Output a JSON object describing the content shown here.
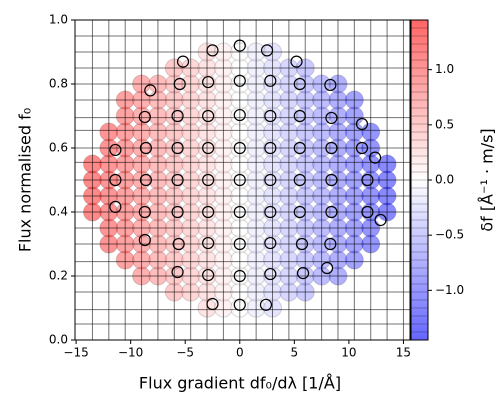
{
  "chart_data": {
    "type": "scatter",
    "xlabel": "Flux gradient df₀/dλ [1/Å]",
    "ylabel": "Flux normalised f₀",
    "xlim": [
      -15.1,
      15.6
    ],
    "ylim": [
      0,
      1
    ],
    "xticks": [
      {
        "value": -15,
        "label": "−15"
      },
      {
        "value": -10,
        "label": "−10"
      },
      {
        "value": -5,
        "label": "−5"
      },
      0,
      5,
      10,
      15
    ],
    "yticks": [
      {
        "value": 0,
        "label": "0.0"
      },
      {
        "value": 0.2,
        "label": "0.2"
      },
      {
        "value": 0.4,
        "label": "0.4"
      },
      {
        "value": 0.6,
        "label": "0.6"
      },
      {
        "value": 0.8,
        "label": "0.8"
      },
      {
        "value": 1,
        "label": "1.0"
      }
    ],
    "grid_x": [
      -13.5,
      -12,
      -10.5,
      -9,
      -7.5,
      -6,
      -4.5,
      -3,
      -1.5,
      0,
      1.5,
      3,
      4.5,
      6,
      7.5,
      9,
      10.5,
      12,
      13.5,
      15
    ],
    "grid_y": [
      0.05,
      0.095,
      0.15,
      0.2,
      0.245,
      0.3,
      0.35,
      0.4,
      0.45,
      0.5,
      0.555,
      0.6,
      0.655,
      0.695,
      0.75,
      0.8,
      0.85,
      0.9,
      0.95
    ],
    "grid_color": "#000000",
    "colorbar": {
      "label": "δf [Å⁻¹ · m/s]",
      "cmap": "bwr",
      "clim": [
        -1.45,
        1.45
      ],
      "ticks": [
        {
          "value": -1,
          "label": "−1.0"
        },
        {
          "value": -0.5,
          "label": "−0.5"
        },
        {
          "value": 0,
          "label": "0.0"
        },
        {
          "value": 0.5,
          "label": "0.5"
        },
        {
          "value": 1,
          "label": "1.0"
        }
      ]
    },
    "series": [
      {
        "marker": "filled",
        "x": [
          -3,
          -1.5,
          0,
          1.5,
          3,
          -6,
          -4.5,
          -3,
          -1.5,
          0,
          1.5,
          3,
          4.5,
          6,
          -9,
          -7.5,
          -6,
          -4.5,
          -3,
          -1.5,
          0,
          1.5,
          3,
          4.5,
          6,
          7.5,
          9,
          -10.5,
          -9,
          -7.5,
          -6,
          -4.5,
          -3,
          -1.5,
          0,
          1.5,
          3,
          4.5,
          6,
          7.5,
          9,
          10.5,
          -12,
          -10.5,
          -9,
          -7.5,
          -6,
          -4.5,
          -3,
          -1.5,
          0,
          1.5,
          3,
          4.5,
          6,
          7.5,
          9,
          10.5,
          12,
          -12,
          -10.5,
          -9,
          -7.5,
          -6,
          -4.5,
          -3,
          -1.5,
          0,
          1.5,
          3,
          4.5,
          6,
          7.5,
          9,
          10.5,
          12,
          -13.5,
          -12,
          -10.5,
          -9,
          -7.5,
          -6,
          -4.5,
          -3,
          -1.5,
          0,
          1.5,
          3,
          4.5,
          6,
          7.5,
          9,
          10.5,
          12,
          13.5,
          -13.5,
          -12,
          -10.5,
          -9,
          -7.5,
          -6,
          -4.5,
          -3,
          -1.5,
          0,
          1.5,
          3,
          4.5,
          6,
          7.5,
          9,
          10.5,
          12,
          13.5,
          -13.5,
          -12,
          -10.5,
          -9,
          -7.5,
          -6,
          -4.5,
          -3,
          -1.5,
          0,
          1.5,
          3,
          4.5,
          6,
          7.5,
          9,
          10.5,
          12,
          13.5,
          -13.5,
          -12,
          -10.5,
          -9,
          -7.5,
          -6,
          -4.5,
          -3,
          -1.5,
          0,
          1.5,
          3,
          4.5,
          6,
          7.5,
          9,
          10.5,
          12,
          13.5,
          -12,
          -10.5,
          -9,
          -7.5,
          -6,
          -4.5,
          -3,
          -1.5,
          0,
          1.5,
          3,
          4.5,
          6,
          7.5,
          9,
          10.5,
          12,
          -12,
          -10.5,
          -9,
          -7.5,
          -6,
          -4.5,
          -3,
          -1.5,
          0,
          1.5,
          3,
          4.5,
          6,
          7.5,
          9,
          10.5,
          12,
          -10.5,
          -9,
          -7.5,
          -6,
          -4.5,
          -3,
          -1.5,
          0,
          1.5,
          3,
          4.5,
          6,
          7.5,
          9,
          10.5,
          -10.5,
          -9,
          -7.5,
          -6,
          -4.5,
          -3,
          -1.5,
          0,
          1.5,
          3,
          4.5,
          6,
          7.5,
          9,
          10.5,
          -9,
          -7.5,
          -6,
          -4.5,
          -3,
          -1.5,
          0,
          1.5,
          3,
          4.5,
          6,
          7.5,
          9,
          -6,
          -4.5,
          -3,
          -1.5,
          0,
          1.5,
          3,
          4.5,
          6,
          -3,
          -1.5,
          0,
          1.5,
          3
        ],
        "y": [
          0.1,
          0.1,
          0.1,
          0.1,
          0.1,
          0.15,
          0.15,
          0.15,
          0.15,
          0.15,
          0.15,
          0.15,
          0.15,
          0.15,
          0.2,
          0.2,
          0.2,
          0.2,
          0.2,
          0.2,
          0.2,
          0.2,
          0.2,
          0.2,
          0.2,
          0.2,
          0.2,
          0.25,
          0.25,
          0.25,
          0.25,
          0.25,
          0.25,
          0.25,
          0.25,
          0.25,
          0.25,
          0.25,
          0.25,
          0.25,
          0.25,
          0.25,
          0.3,
          0.3,
          0.3,
          0.3,
          0.3,
          0.3,
          0.3,
          0.3,
          0.3,
          0.3,
          0.3,
          0.3,
          0.3,
          0.3,
          0.3,
          0.3,
          0.3,
          0.35,
          0.35,
          0.35,
          0.35,
          0.35,
          0.35,
          0.35,
          0.35,
          0.35,
          0.35,
          0.35,
          0.35,
          0.35,
          0.35,
          0.35,
          0.35,
          0.35,
          0.4,
          0.4,
          0.4,
          0.4,
          0.4,
          0.4,
          0.4,
          0.4,
          0.4,
          0.4,
          0.4,
          0.4,
          0.4,
          0.4,
          0.4,
          0.4,
          0.4,
          0.4,
          0.4,
          0.45,
          0.45,
          0.45,
          0.45,
          0.45,
          0.45,
          0.45,
          0.45,
          0.45,
          0.45,
          0.45,
          0.45,
          0.45,
          0.45,
          0.45,
          0.45,
          0.45,
          0.45,
          0.45,
          0.5,
          0.5,
          0.5,
          0.5,
          0.5,
          0.5,
          0.5,
          0.5,
          0.5,
          0.5,
          0.5,
          0.5,
          0.5,
          0.5,
          0.5,
          0.5,
          0.5,
          0.5,
          0.5,
          0.55,
          0.55,
          0.55,
          0.55,
          0.55,
          0.55,
          0.55,
          0.55,
          0.55,
          0.55,
          0.55,
          0.55,
          0.55,
          0.55,
          0.55,
          0.55,
          0.55,
          0.55,
          0.55,
          0.6,
          0.6,
          0.6,
          0.6,
          0.6,
          0.6,
          0.6,
          0.6,
          0.6,
          0.6,
          0.6,
          0.6,
          0.6,
          0.6,
          0.6,
          0.6,
          0.6,
          0.65,
          0.65,
          0.65,
          0.65,
          0.65,
          0.65,
          0.65,
          0.65,
          0.65,
          0.65,
          0.65,
          0.65,
          0.65,
          0.65,
          0.65,
          0.65,
          0.65,
          0.7,
          0.7,
          0.7,
          0.7,
          0.7,
          0.7,
          0.7,
          0.7,
          0.7,
          0.7,
          0.7,
          0.7,
          0.7,
          0.7,
          0.7,
          0.75,
          0.75,
          0.75,
          0.75,
          0.75,
          0.75,
          0.75,
          0.75,
          0.75,
          0.75,
          0.75,
          0.75,
          0.75,
          0.75,
          0.75,
          0.8,
          0.8,
          0.8,
          0.8,
          0.8,
          0.8,
          0.8,
          0.8,
          0.8,
          0.8,
          0.8,
          0.8,
          0.8,
          0.85,
          0.85,
          0.85,
          0.85,
          0.85,
          0.85,
          0.85,
          0.85,
          0.85,
          0.9,
          0.9,
          0.9,
          0.9,
          0.9
        ],
        "c": [
          0.3,
          0.15,
          0,
          -0.15,
          -0.3,
          0.6,
          0.45,
          0.3,
          0.15,
          0,
          -0.15,
          -0.3,
          -0.45,
          -0.6,
          0.9,
          0.75,
          0.6,
          0.45,
          0.3,
          0.15,
          0,
          -0.15,
          -0.3,
          -0.45,
          -0.6,
          -0.75,
          -0.9,
          1.05,
          0.9,
          0.75,
          0.6,
          0.45,
          0.3,
          0.15,
          0,
          -0.15,
          -0.3,
          -0.45,
          -0.6,
          -0.75,
          -0.9,
          -1.05,
          1.2,
          1.05,
          0.9,
          0.75,
          0.6,
          0.45,
          0.3,
          0.15,
          0,
          -0.15,
          -0.3,
          -0.45,
          -0.6,
          -0.75,
          -0.9,
          -1.05,
          -1.2,
          1.2,
          1.05,
          0.9,
          0.75,
          0.6,
          0.45,
          0.3,
          0.15,
          0,
          -0.15,
          -0.3,
          -0.45,
          -0.6,
          -0.75,
          -0.9,
          -1.05,
          -1.2,
          1.35,
          1.2,
          1.05,
          0.9,
          0.75,
          0.6,
          0.45,
          0.3,
          0.15,
          0,
          -0.15,
          -0.3,
          -0.45,
          -0.6,
          -0.75,
          -0.9,
          -1.05,
          -1.2,
          -1.35,
          1.35,
          1.2,
          1.05,
          0.9,
          0.75,
          0.6,
          0.45,
          0.3,
          0.15,
          0,
          -0.15,
          -0.3,
          -0.45,
          -0.6,
          -0.75,
          -0.9,
          -1.05,
          -1.2,
          -1.35,
          1.35,
          1.2,
          1.05,
          0.9,
          0.75,
          0.6,
          0.45,
          0.3,
          0.15,
          0,
          -0.15,
          -0.3,
          -0.45,
          -0.6,
          -0.75,
          -0.9,
          -1.05,
          -1.2,
          -1.35,
          1.35,
          1.2,
          1.05,
          0.9,
          0.75,
          0.6,
          0.45,
          0.3,
          0.15,
          0,
          -0.15,
          -0.3,
          -0.45,
          -0.6,
          -0.75,
          -0.9,
          -1.05,
          -1.2,
          -1.35,
          1.2,
          1.05,
          0.9,
          0.75,
          0.6,
          0.45,
          0.3,
          0.15,
          0,
          -0.15,
          -0.3,
          -0.45,
          -0.6,
          -0.75,
          -0.9,
          -1.05,
          -1.2,
          1.2,
          1.05,
          0.9,
          0.75,
          0.6,
          0.45,
          0.3,
          0.15,
          0,
          -0.15,
          -0.3,
          -0.45,
          -0.6,
          -0.75,
          -0.9,
          -1.05,
          -1.2,
          1.05,
          0.9,
          0.75,
          0.6,
          0.45,
          0.3,
          0.15,
          0,
          -0.15,
          -0.3,
          -0.45,
          -0.6,
          -0.75,
          -0.9,
          -1.05,
          1.05,
          0.9,
          0.75,
          0.6,
          0.45,
          0.3,
          0.15,
          0,
          -0.15,
          -0.3,
          -0.45,
          -0.6,
          -0.75,
          -0.9,
          -1.05,
          0.9,
          0.75,
          0.6,
          0.45,
          0.3,
          0.15,
          0,
          -0.15,
          -0.3,
          -0.45,
          -0.6,
          -0.75,
          -0.9,
          0.6,
          0.45,
          0.3,
          0.15,
          0,
          -0.15,
          -0.3,
          -0.45,
          -0.6,
          0.3,
          0.15,
          0,
          -0.15,
          -0.3
        ]
      },
      {
        "marker": "open",
        "color": "#000000",
        "x": [
          0,
          -2.5,
          2.5,
          -5.2,
          5.2,
          -8.2,
          -5.5,
          -2.9,
          0,
          2.8,
          5.5,
          8.3,
          -8.7,
          -5.7,
          -2.9,
          0,
          2.8,
          5.5,
          8.4,
          11.2,
          -11.4,
          -8.6,
          -5.7,
          -2.9,
          0,
          2.8,
          5.5,
          8.4,
          11.2,
          12.4,
          -11.4,
          -8.6,
          -5.7,
          -2.9,
          0,
          2.8,
          5.5,
          8.4,
          11.7,
          -11.4,
          -8.7,
          -5.7,
          -2.9,
          0,
          2.8,
          5.5,
          8.4,
          11.7,
          12.9,
          -8.7,
          -5.6,
          -2.9,
          0,
          2.8,
          5.7,
          8.3,
          -5.7,
          -2.9,
          0,
          2.8,
          5.8,
          8.0,
          -2.5,
          0,
          2.4
        ],
        "y": [
          0.92,
          0.905,
          0.905,
          0.87,
          0.87,
          0.78,
          0.8,
          0.806,
          0.81,
          0.81,
          0.8,
          0.797,
          0.697,
          0.7,
          0.7,
          0.703,
          0.7,
          0.7,
          0.694,
          0.675,
          0.594,
          0.6,
          0.6,
          0.6,
          0.6,
          0.6,
          0.6,
          0.6,
          0.6,
          0.57,
          0.5,
          0.5,
          0.5,
          0.5,
          0.5,
          0.5,
          0.5,
          0.5,
          0.5,
          0.416,
          0.4,
          0.4,
          0.4,
          0.4,
          0.4,
          0.4,
          0.4,
          0.4,
          0.375,
          0.3125,
          0.3,
          0.303,
          0.3,
          0.303,
          0.3,
          0.3,
          0.2125,
          0.203,
          0.2,
          0.206,
          0.209,
          0.225,
          0.1125,
          0.11,
          0.11
        ]
      }
    ]
  }
}
